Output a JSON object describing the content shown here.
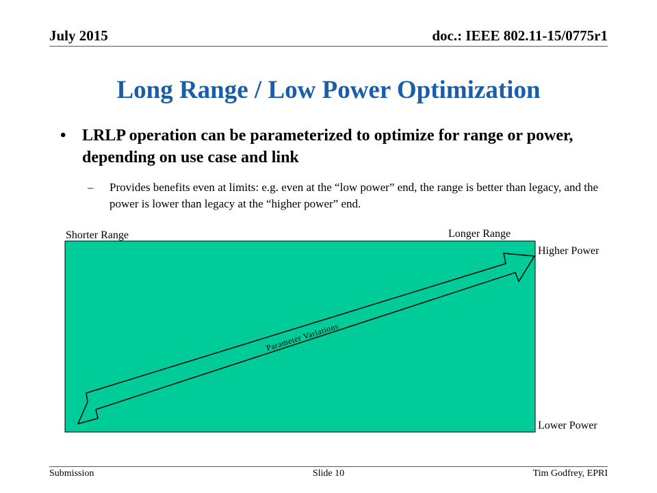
{
  "header": {
    "date": "July 2015",
    "doc_id": "doc.: IEEE 802.11-15/0775r1"
  },
  "title": "Long Range / Low Power Optimization",
  "bullets": [
    {
      "marker": "•",
      "text": "LRLP operation can be parameterized to optimize for range or power, depending on use case and link",
      "sub": {
        "marker": "–",
        "text": "Provides benefits even at limits: e.g. even at the “low power” end, the range is better than legacy, and the power is lower than legacy at the “higher power” end."
      }
    }
  ],
  "diagram": {
    "labels": {
      "shorter_range": "Shorter Range",
      "longer_range": "Longer Range",
      "higher_power": "Higher Power",
      "lower_power": "Lower Power",
      "arrow": "Parameter Variations"
    },
    "colors": {
      "box_fill": "#00cc99",
      "arrow_fill": "#00cc99",
      "stroke": "#000000"
    }
  },
  "footer": {
    "left": "Submission",
    "center": "Slide 10",
    "right": "Tim Godfrey, EPRI"
  }
}
